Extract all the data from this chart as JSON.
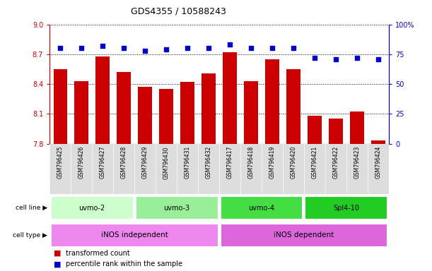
{
  "title": "GDS4355 / 10588243",
  "samples": [
    "GSM796425",
    "GSM796426",
    "GSM796427",
    "GSM796428",
    "GSM796429",
    "GSM796430",
    "GSM796431",
    "GSM796432",
    "GSM796417",
    "GSM796418",
    "GSM796419",
    "GSM796420",
    "GSM796421",
    "GSM796422",
    "GSM796423",
    "GSM796424"
  ],
  "transformed_count": [
    8.55,
    8.43,
    8.68,
    8.52,
    8.37,
    8.35,
    8.42,
    8.51,
    8.72,
    8.43,
    8.65,
    8.55,
    8.08,
    8.05,
    8.12,
    7.83
  ],
  "percentile_rank": [
    80,
    80,
    82,
    80,
    78,
    79,
    80,
    80,
    83,
    80,
    80,
    80,
    72,
    71,
    72,
    71
  ],
  "cell_line_groups": [
    {
      "label": "uvmo-2",
      "start": 0,
      "end": 3,
      "color": "#ccffcc"
    },
    {
      "label": "uvmo-3",
      "start": 4,
      "end": 7,
      "color": "#99ee99"
    },
    {
      "label": "uvmo-4",
      "start": 8,
      "end": 11,
      "color": "#44dd44"
    },
    {
      "label": "Spl4-10",
      "start": 12,
      "end": 15,
      "color": "#22cc22"
    }
  ],
  "cell_type_groups": [
    {
      "label": "iNOS independent",
      "start": 0,
      "end": 7,
      "color": "#ee88ee"
    },
    {
      "label": "iNOS dependent",
      "start": 8,
      "end": 15,
      "color": "#dd66dd"
    }
  ],
  "ylim_left": [
    7.8,
    9.0
  ],
  "ylim_right": [
    0,
    100
  ],
  "yticks_left": [
    7.8,
    8.1,
    8.4,
    8.7,
    9.0
  ],
  "yticks_right": [
    0,
    25,
    50,
    75,
    100
  ],
  "bar_color": "#cc0000",
  "dot_color": "#0000cc",
  "bar_bottom": 7.8,
  "grid_color": "#000000",
  "background_color": "#ffffff",
  "left_tick_color": "#cc0000",
  "right_tick_color": "#0000cc",
  "legend_items": [
    {
      "label": "transformed count",
      "color": "#cc0000"
    },
    {
      "label": "percentile rank within the sample",
      "color": "#0000cc"
    }
  ]
}
